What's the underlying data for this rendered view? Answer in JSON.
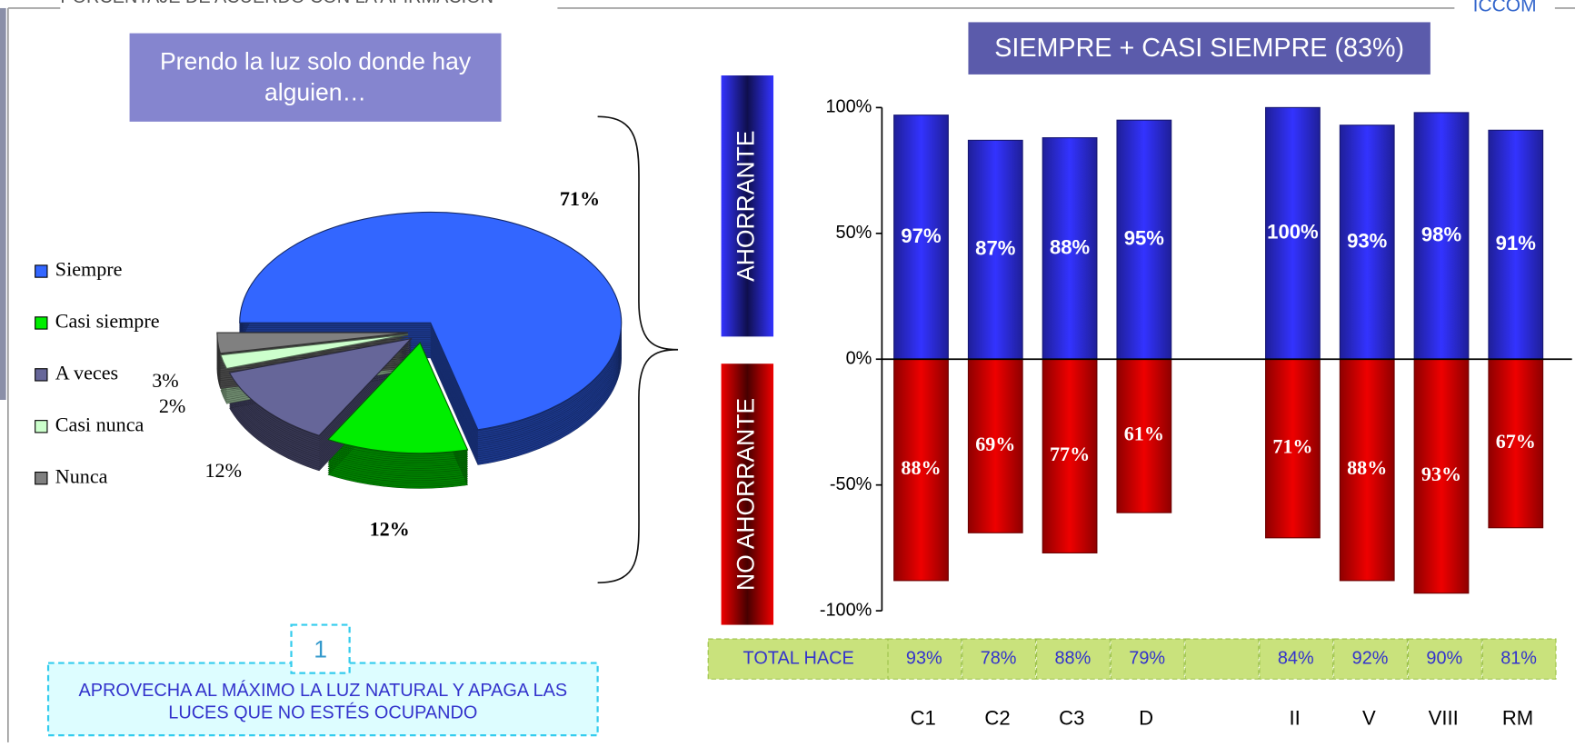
{
  "header": {
    "text": "PORCENTAJE DE ACUERDO CON LA AFIRMACIÓN",
    "brand": "ICCOM"
  },
  "chart_data": [
    {
      "type": "pie",
      "title": "Prendo la luz solo donde hay alguien…",
      "categories": [
        "Siempre",
        "Casi siempre",
        "A veces",
        "Casi nunca",
        "Nunca"
      ],
      "values": [
        71,
        12,
        12,
        2,
        3
      ],
      "value_labels": [
        "71%",
        "12%",
        "12%",
        "2%",
        "3%"
      ],
      "colors": [
        "#3366ff",
        "#00ee00",
        "#666699",
        "#ccffcc",
        "#808080"
      ],
      "legend": "left"
    },
    {
      "type": "bar",
      "title": "SIEMPRE + CASI SIEMPRE (83%)",
      "categories": [
        "C1",
        "C2",
        "C3",
        "D",
        null,
        "II",
        "V",
        "VIII",
        "RM"
      ],
      "series": [
        {
          "name": "AHORRANTE",
          "color": "#3333ff",
          "values": [
            97,
            87,
            88,
            95,
            null,
            100,
            93,
            98,
            91
          ],
          "value_labels": [
            "97%",
            "87%",
            "88%",
            "95%",
            null,
            "100%",
            "93%",
            "98%",
            "91%"
          ]
        },
        {
          "name": "NO AHORRANTE",
          "color": "#ee0000",
          "values": [
            -88,
            -69,
            -77,
            -61,
            null,
            -71,
            -88,
            -93,
            -67
          ],
          "value_labels": [
            "88%",
            "69%",
            "77%",
            "61%",
            null,
            "71%",
            "88%",
            "93%",
            "67%"
          ]
        }
      ],
      "ylim": [
        -100,
        100
      ],
      "yticks": [
        {
          "value": -100,
          "label": "-100%"
        },
        {
          "value": -50,
          "label": "-50%"
        },
        {
          "value": 0,
          "label": "0%"
        },
        {
          "value": 50,
          "label": "50%"
        },
        {
          "value": 100,
          "label": "100%"
        }
      ],
      "table": {
        "label": "TOTAL HACE",
        "values": [
          "93%",
          "78%",
          "88%",
          "79%",
          null,
          "84%",
          "92%",
          "90%",
          "81%"
        ]
      }
    }
  ],
  "tip": {
    "number": "1",
    "text": "APROVECHA AL MÁXIMO LA LUZ NATURAL Y APAGA LAS LUCES QUE NO ESTÉS OCUPANDO"
  }
}
